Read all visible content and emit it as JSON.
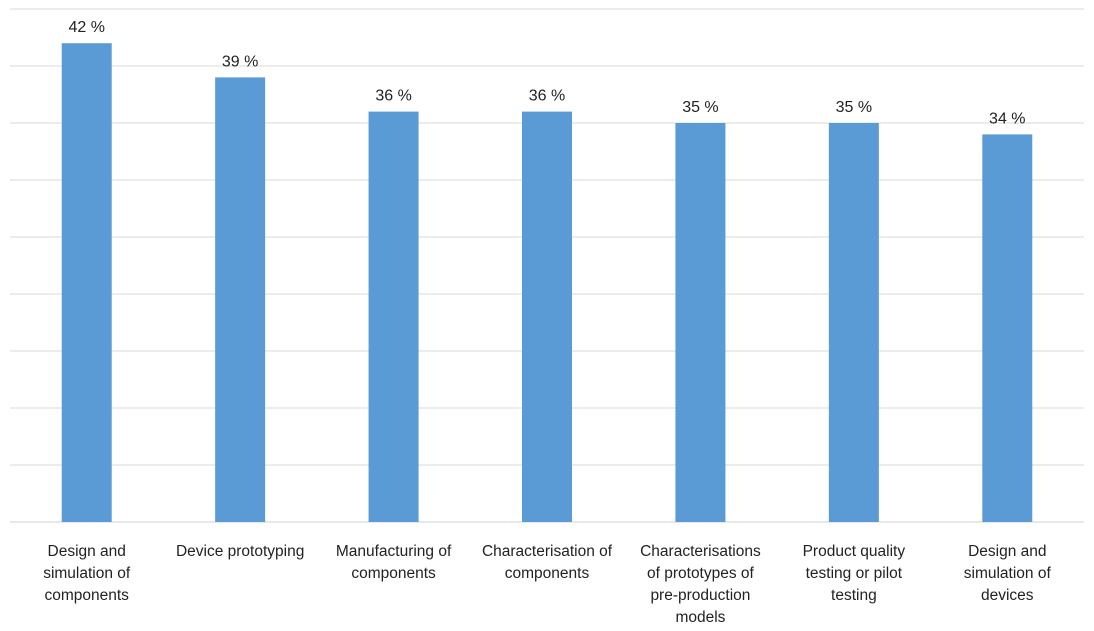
{
  "chart_data": {
    "type": "bar",
    "categories": [
      [
        "Design and",
        "simulation of",
        "components"
      ],
      [
        "Device prototyping"
      ],
      [
        "Manufacturing of",
        "components"
      ],
      [
        "Characterisation of",
        "components"
      ],
      [
        "Characterisations",
        "of prototypes of",
        "pre-production",
        "models"
      ],
      [
        "Product quality",
        "testing or pilot",
        "testing"
      ],
      [
        "Design and",
        "simulation of",
        "devices"
      ]
    ],
    "values": [
      42,
      39,
      36,
      36,
      35,
      35,
      34
    ],
    "data_labels": [
      "42 %",
      "39 %",
      "36 %",
      "36 %",
      "35 %",
      "35 %",
      "34 %"
    ],
    "ylim": [
      0,
      45
    ],
    "grid": true,
    "legend": "none",
    "title": "",
    "xlabel": "",
    "ylabel": "",
    "colors": {
      "bar": "#5b9bd5",
      "grid": "#d9d9d9"
    }
  }
}
